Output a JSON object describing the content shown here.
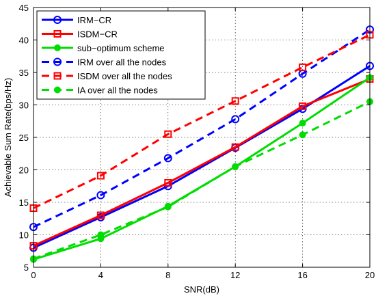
{
  "chart_data": {
    "type": "line",
    "xlabel": "SNR(dB)",
    "ylabel": "Achievable Sum Rate(bps/Hz)",
    "xlim": [
      0,
      20
    ],
    "ylim": [
      5,
      45
    ],
    "xticks": [
      0,
      4,
      8,
      12,
      16,
      20
    ],
    "yticks": [
      5,
      10,
      15,
      20,
      25,
      30,
      35,
      40,
      45
    ],
    "x": [
      0,
      4,
      8,
      12,
      16,
      20
    ],
    "grid": true,
    "legend_position": "top-left",
    "series": [
      {
        "name": "IRM−CR",
        "values": [
          8.0,
          12.7,
          17.5,
          23.4,
          29.4,
          36.0
        ],
        "color": "#0000ff",
        "dash": "solid",
        "marker": "circle-open"
      },
      {
        "name": "ISDM−CR",
        "values": [
          8.3,
          13.0,
          18.0,
          23.5,
          29.8,
          34.0
        ],
        "color": "#ff0000",
        "dash": "solid",
        "marker": "square-open"
      },
      {
        "name": "sub−optimum scheme",
        "values": [
          6.2,
          9.4,
          14.4,
          20.5,
          27.2,
          34.2
        ],
        "color": "#00dd00",
        "dash": "solid",
        "marker": "circle-filled"
      },
      {
        "name": "IRM over all the nodes",
        "values": [
          11.2,
          16.1,
          21.8,
          27.8,
          34.8,
          41.6
        ],
        "color": "#0000ff",
        "dash": "dashed",
        "marker": "circle-open"
      },
      {
        "name": "ISDM over all the nodes",
        "values": [
          14.1,
          19.1,
          25.5,
          30.6,
          35.8,
          40.8
        ],
        "color": "#ff0000",
        "dash": "dashed",
        "marker": "square-open"
      },
      {
        "name": "IA over all the nodes",
        "values": [
          6.3,
          10.0,
          14.3,
          20.5,
          25.4,
          30.5
        ],
        "color": "#00dd00",
        "dash": "dashed",
        "marker": "circle-filled"
      }
    ]
  }
}
